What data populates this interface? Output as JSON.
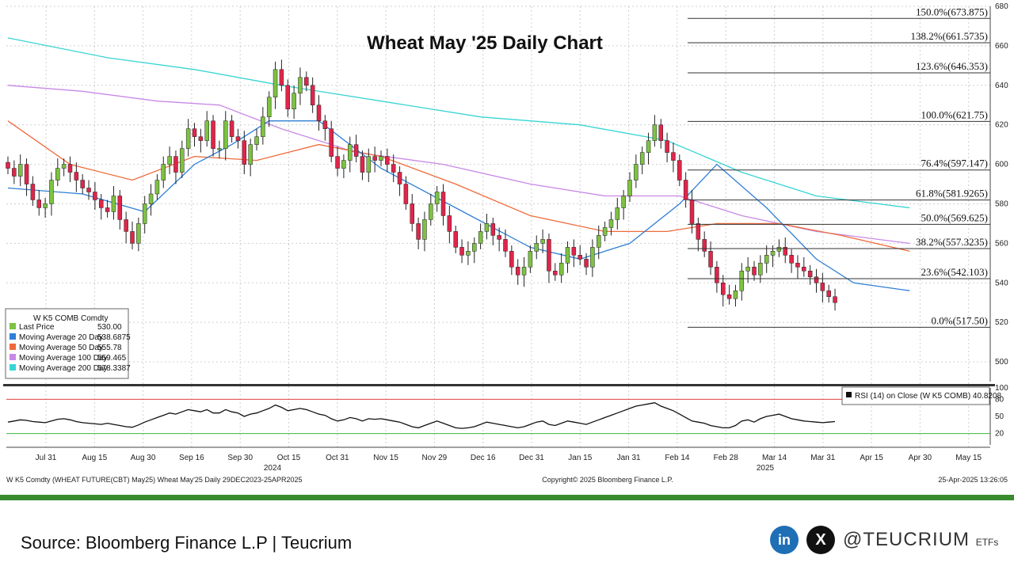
{
  "chart_data": {
    "type": "candlestick",
    "title": "Wheat May '25 Daily Chart",
    "y_axis": {
      "ylim": [
        490,
        680
      ],
      "ticks": [
        500,
        520,
        540,
        560,
        580,
        600,
        620,
        640,
        660,
        680
      ],
      "position": "right"
    },
    "x_axis": {
      "ticks": [
        "Jul 31",
        "Aug 15",
        "Aug 30",
        "Sep 16",
        "Sep 30",
        "Oct 15",
        "Oct 31",
        "Nov 15",
        "Nov 29",
        "Dec 16",
        "Dec 31",
        "Jan 15",
        "Jan 31",
        "Feb 14",
        "Feb 28",
        "Mar 14",
        "Mar 31",
        "Apr 15",
        "Apr 30",
        "May 15"
      ],
      "years": [
        "2024",
        "2025"
      ]
    },
    "price_closes": [
      598,
      594,
      600,
      590,
      582,
      578,
      580,
      592,
      598,
      600,
      596,
      592,
      588,
      586,
      582,
      578,
      576,
      584,
      572,
      566,
      560,
      570,
      580,
      585,
      592,
      600,
      604,
      596,
      608,
      618,
      614,
      612,
      622,
      608,
      608,
      622,
      614,
      612,
      600,
      610,
      614,
      624,
      634,
      648,
      640,
      628,
      636,
      644,
      640,
      630,
      622,
      618,
      604,
      598,
      602,
      610,
      604,
      596,
      604,
      602,
      604,
      600,
      596,
      590,
      580,
      570,
      562,
      572,
      580,
      586,
      574,
      566,
      558,
      554,
      556,
      560,
      566,
      570,
      564,
      562,
      556,
      548,
      544,
      548,
      556,
      560,
      562,
      546,
      544,
      550,
      558,
      554,
      552,
      548,
      558,
      564,
      568,
      572,
      578,
      584,
      592,
      600,
      606,
      612,
      620,
      612,
      606,
      602,
      592,
      582,
      570,
      562,
      556,
      548,
      540,
      534,
      532,
      536,
      546,
      548,
      544,
      550,
      554,
      556,
      558,
      554,
      550,
      548,
      546,
      543,
      540,
      536,
      533,
      530
    ],
    "fibonacci_levels": [
      {
        "label": "150.0%(673.875)",
        "value": 673.875
      },
      {
        "label": "138.2%(661.5735)",
        "value": 661.5735
      },
      {
        "label": "123.6%(646.353)",
        "value": 646.353
      },
      {
        "label": "100.0%(621.75)",
        "value": 621.75
      },
      {
        "label": "76.4%(597.147)",
        "value": 597.147
      },
      {
        "label": "61.8%(581.9265)",
        "value": 581.9265
      },
      {
        "label": "50.0%(569.625)",
        "value": 569.625
      },
      {
        "label": "38.2%(557.3235)",
        "value": 557.3235
      },
      {
        "label": "23.6%(542.103)",
        "value": 542.103
      },
      {
        "label": "0.0%(517.50)",
        "value": 517.5
      }
    ],
    "legend": {
      "header": "W K5 COMB Comdty",
      "placement": "bottom-left",
      "entries": [
        {
          "name": "Last Price",
          "value": "530.00",
          "color": "#7dc242"
        },
        {
          "name": "Moving Average 20 Day",
          "value": "538.6875",
          "color": "#2f7fd6"
        },
        {
          "name": "Moving Average 50 Day",
          "value": "555.78",
          "color": "#ef6a3a"
        },
        {
          "name": "Moving Average 100 Day",
          "value": "559.465",
          "color": "#c888e6"
        },
        {
          "name": "Moving Average 200 Day",
          "value": "578.3387",
          "color": "#38d4d4"
        }
      ]
    },
    "moving_average_anchors": {
      "ma20": [
        [
          0,
          588
        ],
        [
          12,
          585
        ],
        [
          22,
          576
        ],
        [
          30,
          600
        ],
        [
          36,
          610
        ],
        [
          42,
          622
        ],
        [
          50,
          622
        ],
        [
          60,
          598
        ],
        [
          72,
          578
        ],
        [
          84,
          558
        ],
        [
          92,
          552
        ],
        [
          100,
          560
        ],
        [
          108,
          580
        ],
        [
          114,
          600
        ],
        [
          122,
          578
        ],
        [
          130,
          552
        ],
        [
          136,
          540
        ],
        [
          145,
          536
        ]
      ],
      "ma50": [
        [
          0,
          622
        ],
        [
          10,
          600
        ],
        [
          20,
          592
        ],
        [
          30,
          604
        ],
        [
          40,
          602
        ],
        [
          50,
          610
        ],
        [
          60,
          604
        ],
        [
          72,
          590
        ],
        [
          84,
          574
        ],
        [
          96,
          566
        ],
        [
          106,
          566
        ],
        [
          114,
          570
        ],
        [
          124,
          570
        ],
        [
          134,
          564
        ],
        [
          145,
          556
        ]
      ],
      "ma100": [
        [
          0,
          640
        ],
        [
          12,
          637
        ],
        [
          24,
          632
        ],
        [
          34,
          630
        ],
        [
          44,
          618
        ],
        [
          56,
          606
        ],
        [
          70,
          600
        ],
        [
          84,
          590
        ],
        [
          96,
          584
        ],
        [
          108,
          584
        ],
        [
          118,
          574
        ],
        [
          130,
          566
        ],
        [
          145,
          560
        ]
      ],
      "ma200": [
        [
          0,
          664
        ],
        [
          16,
          654
        ],
        [
          30,
          648
        ],
        [
          44,
          640
        ],
        [
          60,
          632
        ],
        [
          76,
          624
        ],
        [
          92,
          620
        ],
        [
          106,
          612
        ],
        [
          118,
          596
        ],
        [
          130,
          584
        ],
        [
          145,
          578
        ]
      ]
    },
    "rsi": {
      "label": "RSI (14)  on Close (W K5 COMB) 40.8208",
      "value": 40.8208,
      "ylim": [
        0,
        100
      ],
      "ticks": [
        20,
        50,
        80,
        100
      ],
      "levels": [
        {
          "value": 80,
          "color": "#e04040"
        },
        {
          "value": 20,
          "color": "#3ab53a"
        }
      ],
      "values": [
        40,
        42,
        44,
        43,
        41,
        40,
        39,
        42,
        45,
        46,
        44,
        41,
        39,
        38,
        37,
        36,
        38,
        36,
        34,
        32,
        31,
        35,
        40,
        44,
        48,
        52,
        56,
        54,
        58,
        62,
        60,
        58,
        62,
        56,
        56,
        62,
        58,
        56,
        50,
        54,
        56,
        60,
        64,
        70,
        66,
        60,
        62,
        64,
        62,
        58,
        54,
        52,
        46,
        42,
        44,
        48,
        46,
        42,
        46,
        45,
        46,
        44,
        42,
        40,
        36,
        32,
        30,
        34,
        38,
        42,
        38,
        34,
        30,
        29,
        30,
        32,
        36,
        40,
        38,
        36,
        34,
        32,
        30,
        32,
        36,
        40,
        42,
        36,
        34,
        38,
        42,
        40,
        38,
        36,
        40,
        44,
        48,
        52,
        56,
        60,
        64,
        68,
        70,
        72,
        74,
        68,
        64,
        60,
        54,
        48,
        42,
        40,
        38,
        34,
        32,
        30,
        30,
        34,
        42,
        44,
        40,
        46,
        50,
        52,
        54,
        50,
        46,
        44,
        42,
        41,
        40,
        39,
        40,
        41
      ]
    },
    "footer_left": "W K5 Comdty (WHEAT FUTURE(CBT) May25) Wheat May'25  Daily 29DEC2023-25APR2025",
    "footer_center": "Copyright© 2025 Bloomberg Finance L.P.",
    "footer_right": "25-Apr-2025 13:26:05"
  },
  "footer": {
    "source": "Source: Bloomberg Finance L.P | Teucrium",
    "linkedin": "in",
    "x": "X",
    "handle": "@TEUCRIUM",
    "handle_suffix": "ETFs"
  }
}
